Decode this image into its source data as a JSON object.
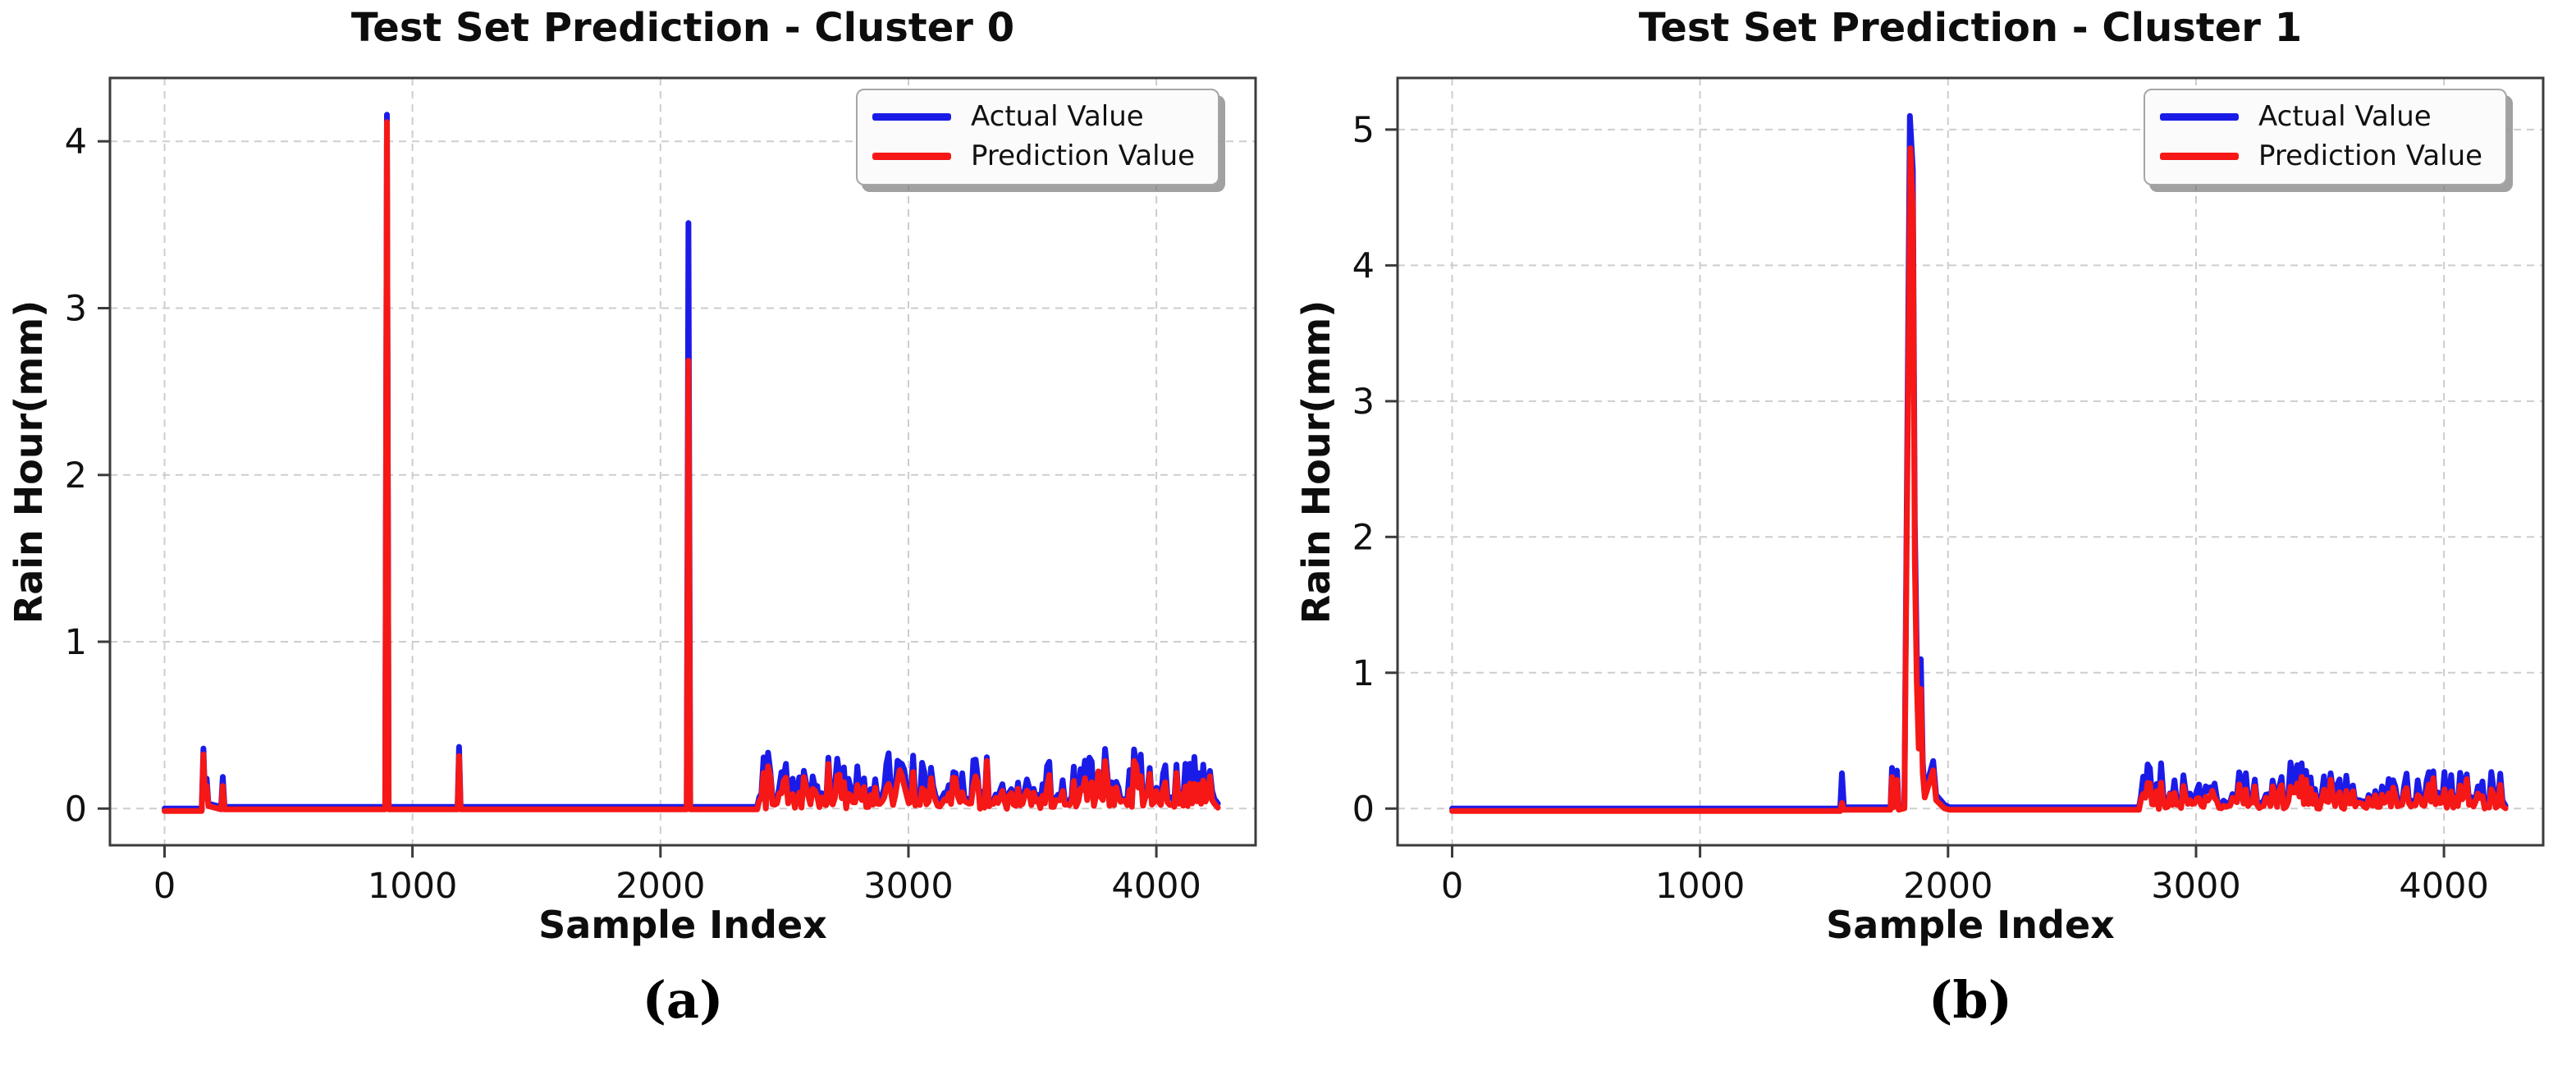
{
  "page": {
    "background": "#ffffff"
  },
  "colors": {
    "actual_line": "#1b1be8",
    "prediction_line": "#f61717",
    "grid": "#cdcdcd",
    "spine": "#3b3b3b"
  },
  "chart_data": [
    {
      "type": "line",
      "title": "Test Set Prediction - Cluster 0",
      "xlabel": "Sample Index",
      "ylabel": "Rain Hour(mm)",
      "caption": "(a)",
      "xlim": [
        -220,
        4400
      ],
      "ylim": [
        -0.22,
        4.38
      ],
      "xticks": [
        0,
        1000,
        2000,
        3000,
        4000
      ],
      "yticks": [
        0,
        1,
        2,
        3,
        4
      ],
      "grid": "dashed",
      "legend_position": "upper right",
      "series": [
        {
          "name": "Actual Value",
          "color": "#1b1be8",
          "segments": [
            {
              "pts": [
                [
                  0,
                  0
                ],
                [
                  150,
                  0
                ],
                [
                  157,
                  0.36
                ],
                [
                  163,
                  0.07
                ],
                [
                  170,
                  0.18
                ],
                [
                  177,
                  0.03
                ],
                [
                  228,
                  0.01
                ],
                [
                  235,
                  0.19
                ],
                [
                  242,
                  0.01
                ],
                [
                  890,
                  0.01
                ],
                [
                  897,
                  4.16
                ],
                [
                  904,
                  0.01
                ],
                [
                  1182,
                  0.01
                ],
                [
                  1188,
                  0.37
                ],
                [
                  1194,
                  0.01
                ],
                [
                  2106,
                  0.01
                ],
                [
                  2113,
                  3.51
                ],
                [
                  2120,
                  0.01
                ],
                [
                  2390,
                  0.01
                ]
              ]
            },
            {
              "noise": {
                "from": 2398,
                "to": 4240,
                "step": 9,
                "amp": 0.3,
                "seed": 13,
                "role": "blue"
              }
            },
            {
              "pts": [
                [
                  4248,
                  0.03
                ]
              ]
            }
          ]
        },
        {
          "name": "Prediction Value",
          "color": "#f61717",
          "segments": [
            {
              "pts": [
                [
                  0,
                  0
                ],
                [
                  150,
                  0
                ],
                [
                  157,
                  0.34
                ],
                [
                  163,
                  0.08
                ],
                [
                  170,
                  0.15
                ],
                [
                  177,
                  0.03
                ],
                [
                  228,
                  0.01
                ],
                [
                  235,
                  0.15
                ],
                [
                  242,
                  0.01
                ],
                [
                  890,
                  0.01
                ],
                [
                  897,
                  4.13
                ],
                [
                  904,
                  0.01
                ],
                [
                  1182,
                  0.01
                ],
                [
                  1188,
                  0.33
                ],
                [
                  1194,
                  0.01
                ],
                [
                  2106,
                  0.01
                ],
                [
                  2113,
                  2.7
                ],
                [
                  2120,
                  0.01
                ],
                [
                  2390,
                  0.01
                ]
              ]
            },
            {
              "noise": {
                "from": 2398,
                "to": 4240,
                "step": 9,
                "amp": 0.3,
                "seed": 13,
                "role": "red"
              }
            },
            {
              "pts": [
                [
                  4248,
                  0.02
                ]
              ]
            }
          ]
        }
      ]
    },
    {
      "type": "line",
      "title": "Test Set Prediction - Cluster 1",
      "xlabel": "Sample Index",
      "ylabel": "Rain Hour(mm)",
      "caption": "(b)",
      "xlim": [
        -220,
        4400
      ],
      "ylim": [
        -0.27,
        5.38
      ],
      "xticks": [
        0,
        1000,
        2000,
        3000,
        4000
      ],
      "yticks": [
        0,
        1,
        2,
        3,
        4,
        5
      ],
      "grid": "dashed",
      "legend_position": "upper right",
      "series": [
        {
          "name": "Actual Value",
          "color": "#1b1be8",
          "segments": [
            {
              "pts": [
                [
                  0,
                  0
                ],
                [
                  1565,
                  0
                ],
                [
                  1572,
                  0.26
                ],
                [
                  1580,
                  0.01
                ],
                [
                  1768,
                  0.01
                ],
                [
                  1774,
                  0.3
                ],
                [
                  1781,
                  0.04
                ],
                [
                  1794,
                  0.28
                ],
                [
                  1801,
                  0.01
                ],
                [
                  1824,
                  0.02
                ],
                [
                  1834,
                  2.3
                ],
                [
                  1846,
                  5.1
                ],
                [
                  1858,
                  4.7
                ],
                [
                  1866,
                  2.1
                ],
                [
                  1874,
                  1.15
                ],
                [
                  1882,
                  0.55
                ],
                [
                  1890,
                  1.1
                ],
                [
                  1898,
                  0.34
                ],
                [
                  1906,
                  0.12
                ],
                [
                  1940,
                  0.35
                ],
                [
                  1952,
                  0.1
                ],
                [
                  1985,
                  0.03
                ],
                [
                  2005,
                  0.01
                ],
                [
                  2770,
                  0.01
                ]
              ]
            },
            {
              "noise": {
                "from": 2778,
                "to": 4240,
                "step": 9,
                "amp": 0.3,
                "seed": 29,
                "role": "blue"
              }
            },
            {
              "pts": [
                [
                  4248,
                  0.02
                ]
              ]
            }
          ]
        },
        {
          "name": "Prediction Value",
          "color": "#f61717",
          "segments": [
            {
              "pts": [
                [
                  0,
                  0
                ],
                [
                  1565,
                  0
                ],
                [
                  1572,
                  0.06
                ],
                [
                  1580,
                  0.01
                ],
                [
                  1768,
                  0.01
                ],
                [
                  1774,
                  0.25
                ],
                [
                  1781,
                  0.03
                ],
                [
                  1794,
                  0.23
                ],
                [
                  1801,
                  0.01
                ],
                [
                  1824,
                  0.02
                ],
                [
                  1834,
                  2.1
                ],
                [
                  1848,
                  4.88
                ],
                [
                  1858,
                  4.45
                ],
                [
                  1866,
                  1.85
                ],
                [
                  1874,
                  0.95
                ],
                [
                  1882,
                  0.46
                ],
                [
                  1890,
                  0.9
                ],
                [
                  1898,
                  0.28
                ],
                [
                  1906,
                  0.1
                ],
                [
                  1940,
                  0.3
                ],
                [
                  1952,
                  0.08
                ],
                [
                  1985,
                  0.02
                ],
                [
                  2005,
                  0.01
                ],
                [
                  2770,
                  0.01
                ]
              ]
            },
            {
              "noise": {
                "from": 2778,
                "to": 4240,
                "step": 9,
                "amp": 0.3,
                "seed": 29,
                "role": "red"
              }
            },
            {
              "pts": [
                [
                  4248,
                  0.02
                ]
              ]
            }
          ]
        }
      ]
    }
  ]
}
